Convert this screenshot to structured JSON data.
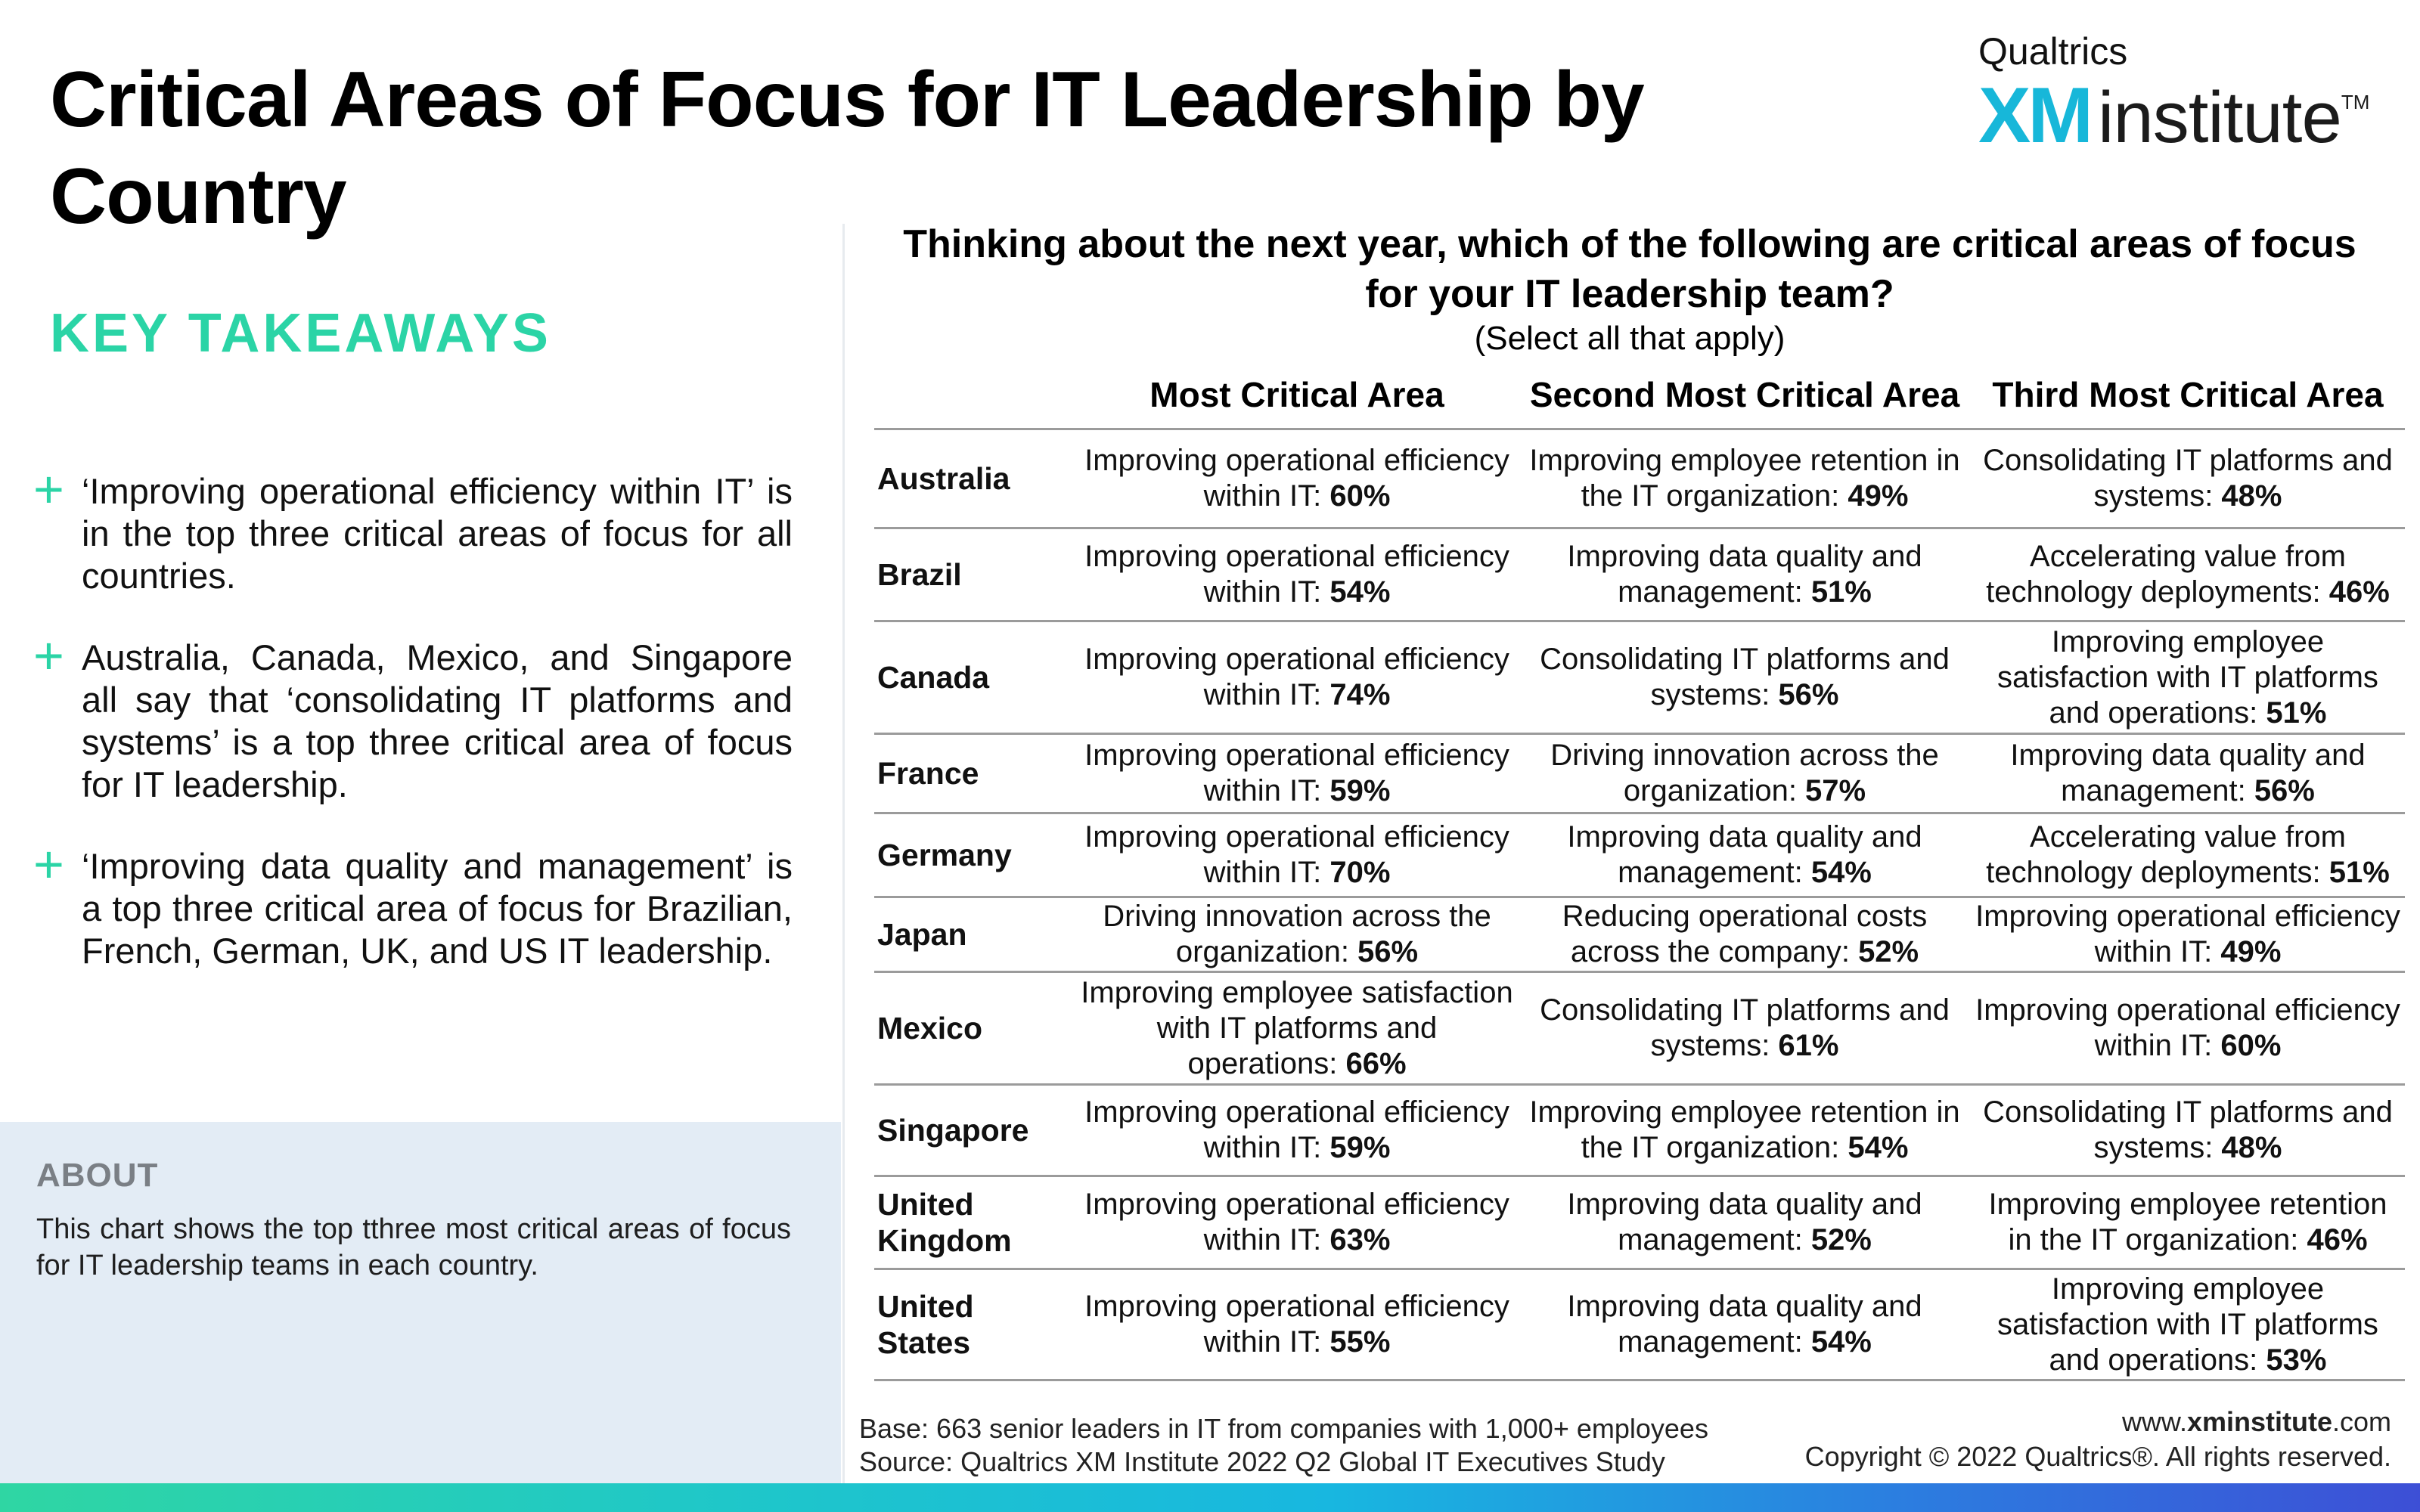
{
  "page": {
    "title": "Critical Areas of Focus for IT Leadership by Country"
  },
  "logo": {
    "top": "Qualtrics",
    "xm": "XM",
    "institute": "institute",
    "tm": "TM"
  },
  "takeaways": {
    "heading": "KEY TAKEAWAYS",
    "icon": "plus-icon",
    "items": [
      "‘Improving operational efficiency within IT’ is in the top three critical areas of focus for all countries.",
      "Australia, Canada, Mexico, and Singapore all say that ‘consolidating IT platforms and systems’ is a top three critical area of focus for IT leadership.",
      "‘Improving data quality and management’ is a top three critical area of focus for Brazilian, French, German, UK, and US IT leadership."
    ]
  },
  "about": {
    "heading": "ABOUT",
    "text": "This chart shows the top tthree most critical areas of focus for IT leadership teams in each country."
  },
  "question": {
    "text": "Thinking about the next year, which of the following are critical areas of focus for your IT leadership team?",
    "subtext": "(Select all that apply)"
  },
  "table": {
    "columns": [
      "Most Critical Area",
      "Second Most Critical Area",
      "Third Most Critical Area"
    ],
    "rows": [
      {
        "country": "Australia",
        "cells": [
          {
            "text": "Improving operational efficiency within IT: ",
            "pct": "60%"
          },
          {
            "text": "Improving employee retention in the IT organization: ",
            "pct": "49%"
          },
          {
            "text": "Consolidating IT platforms and systems: ",
            "pct": "48%"
          }
        ]
      },
      {
        "country": "Brazil",
        "cells": [
          {
            "text": "Improving operational efficiency within IT: ",
            "pct": "54%"
          },
          {
            "text": "Improving data quality and management: ",
            "pct": "51%"
          },
          {
            "text": "Accelerating value from technology deployments: ",
            "pct": "46%"
          }
        ]
      },
      {
        "country": "Canada",
        "cells": [
          {
            "text": "Improving operational efficiency within IT: ",
            "pct": "74%"
          },
          {
            "text": "Consolidating IT platforms and systems: ",
            "pct": "56%"
          },
          {
            "text": "Improving employee satisfaction with IT platforms and operations: ",
            "pct": "51%"
          }
        ]
      },
      {
        "country": "France",
        "cells": [
          {
            "text": "Improving operational efficiency within IT: ",
            "pct": "59%"
          },
          {
            "text": "Driving innovation across the organization: ",
            "pct": "57%"
          },
          {
            "text": "Improving data quality and management: ",
            "pct": "56%"
          }
        ]
      },
      {
        "country": "Germany",
        "cells": [
          {
            "text": "Improving operational efficiency within IT: ",
            "pct": "70%"
          },
          {
            "text": "Improving data quality and management: ",
            "pct": "54%"
          },
          {
            "text": "Accelerating value from technology deployments: ",
            "pct": "51%"
          }
        ]
      },
      {
        "country": "Japan",
        "cells": [
          {
            "text": "Driving innovation across the organization: ",
            "pct": "56%"
          },
          {
            "text": "Reducing operational costs across the company: ",
            "pct": "52%"
          },
          {
            "text": "Improving operational efficiency within IT: ",
            "pct": "49%"
          }
        ]
      },
      {
        "country": "Mexico",
        "cells": [
          {
            "text": "Improving employee satisfaction with IT platforms and operations: ",
            "pct": "66%"
          },
          {
            "text": "Consolidating IT platforms and systems: ",
            "pct": "61%"
          },
          {
            "text": "Improving operational efficiency within IT: ",
            "pct": "60%"
          }
        ]
      },
      {
        "country": "Singapore",
        "cells": [
          {
            "text": "Improving operational efficiency within IT: ",
            "pct": "59%"
          },
          {
            "text": "Improving employee retention in the IT organization: ",
            "pct": "54%"
          },
          {
            "text": "Consolidating IT platforms and systems: ",
            "pct": "48%"
          }
        ]
      },
      {
        "country": "United Kingdom",
        "cells": [
          {
            "text": "Improving operational efficiency within IT: ",
            "pct": "63%"
          },
          {
            "text": "Improving data quality and management: ",
            "pct": "52%"
          },
          {
            "text": "Improving employee retention in the IT organization: ",
            "pct": "46%"
          }
        ]
      },
      {
        "country": "United States",
        "cells": [
          {
            "text": "Improving operational efficiency within IT: ",
            "pct": "55%"
          },
          {
            "text": "Improving data quality and management: ",
            "pct": "54%"
          },
          {
            "text": "Improving employee satisfaction with IT platforms and operations: ",
            "pct": "53%"
          }
        ]
      }
    ]
  },
  "footer": {
    "base": "Base: 663 senior leaders in IT from companies with 1,000+ employees",
    "source": "Source: Qualtrics XM Institute 2022 Q2 Global IT Executives Study",
    "url_prefix": "www.",
    "url_bold": "xminstitute",
    "url_suffix": ".com",
    "copyright": "Copyright © 2022 Qualtrics®. All rights reserved."
  },
  "colors": {
    "accent_green": "#2bd4a6",
    "logo_blue": "#17b7d9",
    "about_bg": "#e3ecf5"
  }
}
